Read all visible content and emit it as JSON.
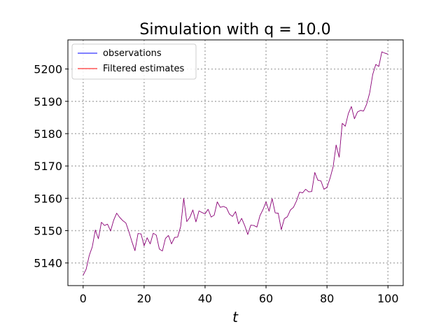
{
  "chart_data": {
    "type": "line",
    "title": "Simulation with q = 10.0",
    "xlabel": "t",
    "ylabel": "",
    "xlim": [
      -5,
      105
    ],
    "ylim": [
      5133,
      5209
    ],
    "xticks": [
      0,
      20,
      40,
      60,
      80,
      100
    ],
    "yticks": [
      5140,
      5150,
      5160,
      5170,
      5180,
      5190,
      5200
    ],
    "grid": true,
    "legend_position": "upper-left",
    "x": [
      0,
      1,
      2,
      3,
      4,
      5,
      6,
      7,
      8,
      9,
      10,
      11,
      12,
      13,
      14,
      15,
      16,
      17,
      18,
      19,
      20,
      21,
      22,
      23,
      24,
      25,
      26,
      27,
      28,
      29,
      30,
      31,
      32,
      33,
      34,
      35,
      36,
      37,
      38,
      39,
      40,
      41,
      42,
      43,
      44,
      45,
      46,
      47,
      48,
      49,
      50,
      51,
      52,
      53,
      54,
      55,
      56,
      57,
      58,
      59,
      60,
      61,
      62,
      63,
      64,
      65,
      66,
      67,
      68,
      69,
      70,
      71,
      72,
      73,
      74,
      75,
      76,
      77,
      78,
      79,
      80,
      81,
      82,
      83,
      84,
      85,
      86,
      87,
      88,
      89,
      90,
      91,
      92,
      93,
      94,
      95,
      96,
      97,
      98,
      99,
      100
    ],
    "series": [
      {
        "name": "observations",
        "color": "#0000ff",
        "values": [
          5136.2,
          5138.1,
          5142.3,
          5145.0,
          5150.2,
          5147.5,
          5152.6,
          5151.6,
          5152.0,
          5149.9,
          5153.2,
          5155.4,
          5154.1,
          5153.1,
          5152.4,
          5149.7,
          5146.6,
          5143.8,
          5149.1,
          5149.0,
          5145.3,
          5147.8,
          5145.9,
          5149.2,
          5148.6,
          5144.3,
          5143.7,
          5147.6,
          5148.5,
          5145.9,
          5147.9,
          5148.0,
          5151.3,
          5160.0,
          5152.8,
          5154.1,
          5156.4,
          5152.7,
          5156.1,
          5155.6,
          5155.2,
          5156.6,
          5154.2,
          5154.8,
          5158.9,
          5157.2,
          5157.5,
          5157.1,
          5155.1,
          5154.4,
          5155.9,
          5152.1,
          5153.8,
          5151.6,
          5148.8,
          5151.7,
          5151.6,
          5151.1,
          5154.6,
          5156.5,
          5158.9,
          5156.0,
          5159.9,
          5155.5,
          5155.4,
          5150.3,
          5153.7,
          5154.3,
          5156.4,
          5157.2,
          5159.2,
          5161.9,
          5161.7,
          5162.8,
          5162.0,
          5162.1,
          5168.0,
          5165.6,
          5165.4,
          5162.8,
          5163.4,
          5166.2,
          5169.7,
          5176.5,
          5172.7,
          5183.2,
          5182.3,
          5186.2,
          5188.4,
          5184.6,
          5186.7,
          5187.2,
          5187.0,
          5189.1,
          5192.6,
          5198.3,
          5201.4,
          5200.8,
          5205.3,
          5204.9,
          5204.6
        ]
      },
      {
        "name": "Filtered estimates",
        "color": "#ff0000",
        "values": [
          5136.2,
          5138.1,
          5142.3,
          5145.0,
          5150.2,
          5147.5,
          5152.6,
          5151.6,
          5152.0,
          5149.9,
          5153.2,
          5155.4,
          5154.1,
          5153.1,
          5152.4,
          5149.7,
          5146.6,
          5143.8,
          5149.1,
          5149.0,
          5145.3,
          5147.8,
          5145.9,
          5149.2,
          5148.6,
          5144.3,
          5143.7,
          5147.6,
          5148.5,
          5145.9,
          5147.9,
          5148.0,
          5151.3,
          5160.0,
          5152.8,
          5154.1,
          5156.4,
          5152.7,
          5156.1,
          5155.6,
          5155.2,
          5156.6,
          5154.2,
          5154.8,
          5158.9,
          5157.2,
          5157.5,
          5157.1,
          5155.1,
          5154.4,
          5155.9,
          5152.1,
          5153.8,
          5151.6,
          5148.8,
          5151.7,
          5151.6,
          5151.1,
          5154.6,
          5156.5,
          5158.9,
          5156.0,
          5159.9,
          5155.5,
          5155.4,
          5150.3,
          5153.7,
          5154.3,
          5156.4,
          5157.2,
          5159.2,
          5161.9,
          5161.7,
          5162.8,
          5162.0,
          5162.1,
          5168.0,
          5165.6,
          5165.4,
          5162.8,
          5163.4,
          5166.2,
          5169.7,
          5176.5,
          5172.7,
          5183.2,
          5182.3,
          5186.2,
          5188.4,
          5184.6,
          5186.7,
          5187.2,
          5187.0,
          5189.1,
          5192.6,
          5198.3,
          5201.4,
          5200.8,
          5205.3,
          5204.9,
          5204.6
        ]
      }
    ]
  }
}
